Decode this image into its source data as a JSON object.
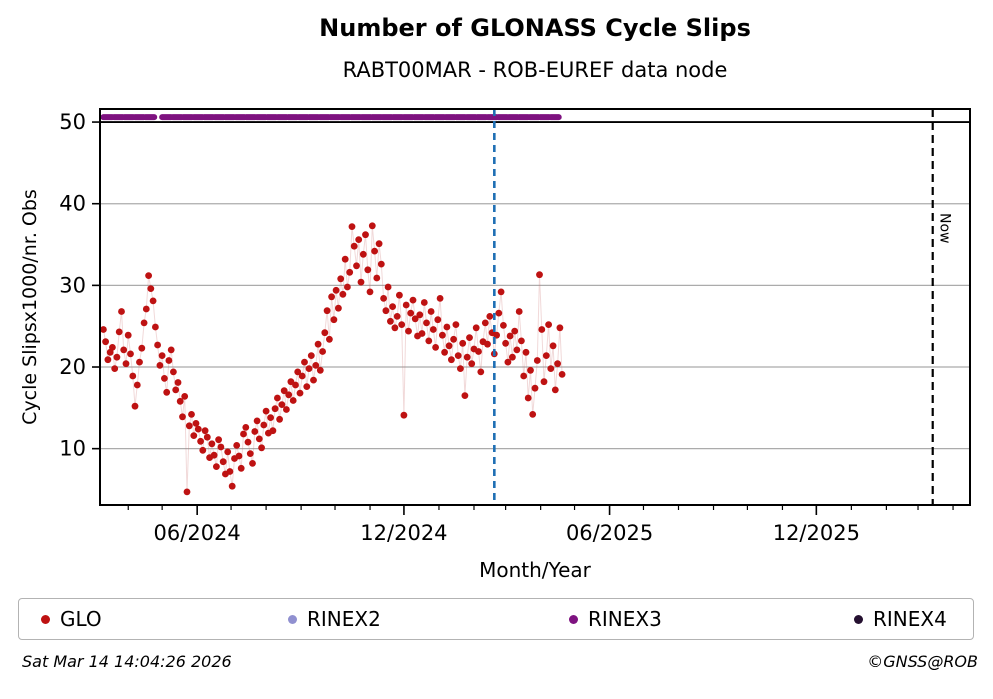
{
  "header": {
    "title": "Number of GLONASS Cycle Slips",
    "subtitle": "RABT00MAR - ROB-EUREF data node"
  },
  "footer": {
    "timestamp": "Sat Mar 14 14:04:26 2026",
    "credit": "©GNSS@ROB"
  },
  "chart_data": {
    "type": "scatter",
    "title": "Number of GLONASS Cycle Slips",
    "subtitle": "RABT00MAR - ROB-EUREF data node",
    "xlabel": "Month/Year",
    "ylabel": "Cycle Slipsx1000/nr. Obs",
    "x_start_date": "2024-03-10",
    "x_domain_days": [
      -3,
      767
    ],
    "y_domain": [
      3.1,
      51.6
    ],
    "y_ticks": [
      10,
      20,
      30,
      40,
      50
    ],
    "grid_color": "#ababab",
    "cap_line_value": 50,
    "x_major_ticks": [
      {
        "day": 83,
        "label": "06/2024"
      },
      {
        "day": 266,
        "label": "12/2024"
      },
      {
        "day": 448,
        "label": "06/2025"
      },
      {
        "day": 631,
        "label": "12/2025"
      }
    ],
    "x_minor_tick_days": [
      22,
      52,
      113,
      144,
      175,
      205,
      236,
      297,
      328,
      356,
      387,
      417,
      478,
      509,
      540,
      570,
      601,
      662,
      693,
      721,
      752
    ],
    "legend_items": [
      {
        "label": "GLO",
        "color": "#be1212"
      },
      {
        "label": "RINEX2",
        "color": "#9090d0"
      },
      {
        "label": "RINEX3",
        "color": "#7e1280"
      },
      {
        "label": "RINEX4",
        "color": "#251030"
      }
    ],
    "event_line": {
      "day": 346,
      "color": "#1f6fb4"
    },
    "now_line": {
      "day": 734,
      "label": "Now",
      "color": "#000000"
    },
    "rinex3_line": {
      "value": 50.6,
      "color": "#7e1280",
      "segments": [
        [
          0,
          45
        ],
        [
          52,
          403
        ]
      ]
    },
    "series": [
      {
        "name": "GLO",
        "color": "#be1212",
        "connector_color": "rgba(205,120,120,0.28)",
        "points": [
          [
            0,
            24.6
          ],
          [
            2,
            23.1
          ],
          [
            4,
            20.9
          ],
          [
            6,
            21.8
          ],
          [
            8,
            22.4
          ],
          [
            10,
            19.8
          ],
          [
            12,
            21.2
          ],
          [
            14,
            24.3
          ],
          [
            16,
            26.8
          ],
          [
            18,
            22.1
          ],
          [
            20,
            20.4
          ],
          [
            22,
            23.9
          ],
          [
            24,
            21.6
          ],
          [
            26,
            18.9
          ],
          [
            28,
            15.2
          ],
          [
            30,
            17.8
          ],
          [
            32,
            20.6
          ],
          [
            34,
            22.3
          ],
          [
            36,
            25.4
          ],
          [
            38,
            27.1
          ],
          [
            40,
            31.2
          ],
          [
            42,
            29.6
          ],
          [
            44,
            28.1
          ],
          [
            46,
            24.9
          ],
          [
            48,
            22.7
          ],
          [
            50,
            20.2
          ],
          [
            52,
            21.4
          ],
          [
            54,
            18.6
          ],
          [
            56,
            16.9
          ],
          [
            58,
            20.8
          ],
          [
            60,
            22.1
          ],
          [
            62,
            19.4
          ],
          [
            64,
            17.2
          ],
          [
            66,
            18.1
          ],
          [
            68,
            15.8
          ],
          [
            70,
            13.9
          ],
          [
            72,
            16.4
          ],
          [
            74,
            4.7
          ],
          [
            76,
            12.8
          ],
          [
            78,
            14.2
          ],
          [
            80,
            11.6
          ],
          [
            82,
            13.1
          ],
          [
            84,
            12.4
          ],
          [
            86,
            10.9
          ],
          [
            88,
            9.8
          ],
          [
            90,
            12.2
          ],
          [
            92,
            11.4
          ],
          [
            94,
            8.9
          ],
          [
            96,
            10.6
          ],
          [
            98,
            9.2
          ],
          [
            100,
            7.8
          ],
          [
            102,
            11.1
          ],
          [
            104,
            10.2
          ],
          [
            106,
            8.4
          ],
          [
            108,
            6.9
          ],
          [
            110,
            9.6
          ],
          [
            112,
            7.2
          ],
          [
            114,
            5.4
          ],
          [
            116,
            8.8
          ],
          [
            118,
            10.4
          ],
          [
            120,
            9.1
          ],
          [
            122,
            7.6
          ],
          [
            124,
            11.8
          ],
          [
            126,
            12.6
          ],
          [
            128,
            10.8
          ],
          [
            130,
            9.4
          ],
          [
            132,
            8.2
          ],
          [
            134,
            12.1
          ],
          [
            136,
            13.4
          ],
          [
            138,
            11.2
          ],
          [
            140,
            10.1
          ],
          [
            142,
            12.9
          ],
          [
            144,
            14.6
          ],
          [
            146,
            11.9
          ],
          [
            148,
            13.8
          ],
          [
            150,
            12.2
          ],
          [
            152,
            14.9
          ],
          [
            154,
            16.2
          ],
          [
            156,
            13.6
          ],
          [
            158,
            15.4
          ],
          [
            160,
            17.1
          ],
          [
            162,
            14.8
          ],
          [
            164,
            16.6
          ],
          [
            166,
            18.2
          ],
          [
            168,
            15.9
          ],
          [
            170,
            17.8
          ],
          [
            172,
            19.4
          ],
          [
            174,
            16.8
          ],
          [
            176,
            18.9
          ],
          [
            178,
            20.6
          ],
          [
            180,
            17.6
          ],
          [
            182,
            19.8
          ],
          [
            184,
            21.4
          ],
          [
            186,
            18.4
          ],
          [
            188,
            20.2
          ],
          [
            190,
            22.8
          ],
          [
            192,
            19.6
          ],
          [
            194,
            21.9
          ],
          [
            196,
            24.2
          ],
          [
            198,
            26.9
          ],
          [
            200,
            23.4
          ],
          [
            202,
            28.6
          ],
          [
            204,
            25.8
          ],
          [
            206,
            29.4
          ],
          [
            208,
            27.2
          ],
          [
            210,
            30.8
          ],
          [
            212,
            28.9
          ],
          [
            214,
            33.2
          ],
          [
            216,
            29.8
          ],
          [
            218,
            31.6
          ],
          [
            220,
            37.2
          ],
          [
            222,
            34.8
          ],
          [
            224,
            32.4
          ],
          [
            226,
            35.6
          ],
          [
            228,
            30.4
          ],
          [
            230,
            33.8
          ],
          [
            232,
            36.2
          ],
          [
            234,
            31.9
          ],
          [
            236,
            29.2
          ],
          [
            238,
            37.3
          ],
          [
            240,
            34.2
          ],
          [
            242,
            30.9
          ],
          [
            244,
            35.1
          ],
          [
            246,
            32.6
          ],
          [
            248,
            28.4
          ],
          [
            250,
            26.9
          ],
          [
            252,
            29.8
          ],
          [
            254,
            25.6
          ],
          [
            256,
            27.4
          ],
          [
            258,
            24.8
          ],
          [
            260,
            26.2
          ],
          [
            262,
            28.8
          ],
          [
            264,
            25.2
          ],
          [
            266,
            14.1
          ],
          [
            268,
            27.6
          ],
          [
            270,
            24.4
          ],
          [
            272,
            26.6
          ],
          [
            274,
            28.2
          ],
          [
            276,
            25.9
          ],
          [
            278,
            23.8
          ],
          [
            280,
            26.4
          ],
          [
            282,
            24.1
          ],
          [
            284,
            27.9
          ],
          [
            286,
            25.4
          ],
          [
            288,
            23.2
          ],
          [
            290,
            26.8
          ],
          [
            292,
            24.6
          ],
          [
            294,
            22.4
          ],
          [
            296,
            25.8
          ],
          [
            298,
            28.4
          ],
          [
            300,
            23.9
          ],
          [
            302,
            21.8
          ],
          [
            304,
            24.9
          ],
          [
            306,
            22.6
          ],
          [
            308,
            20.9
          ],
          [
            310,
            23.4
          ],
          [
            312,
            25.2
          ],
          [
            314,
            21.4
          ],
          [
            316,
            19.8
          ],
          [
            318,
            22.9
          ],
          [
            320,
            16.5
          ],
          [
            322,
            21.2
          ],
          [
            324,
            23.6
          ],
          [
            326,
            20.4
          ],
          [
            328,
            22.2
          ],
          [
            330,
            24.8
          ],
          [
            332,
            21.9
          ],
          [
            334,
            19.4
          ],
          [
            336,
            23.1
          ],
          [
            338,
            25.4
          ],
          [
            340,
            22.8
          ],
          [
            342,
            26.2
          ],
          [
            344,
            24.2
          ],
          [
            346,
            21.6
          ],
          [
            348,
            23.9
          ],
          [
            350,
            26.6
          ],
          [
            352,
            29.2
          ],
          [
            354,
            25.1
          ],
          [
            356,
            22.9
          ],
          [
            358,
            20.6
          ],
          [
            360,
            23.8
          ],
          [
            362,
            21.2
          ],
          [
            364,
            24.4
          ],
          [
            366,
            22.1
          ],
          [
            368,
            26.8
          ],
          [
            370,
            23.2
          ],
          [
            372,
            18.9
          ],
          [
            374,
            21.8
          ],
          [
            376,
            16.2
          ],
          [
            378,
            19.6
          ],
          [
            380,
            14.2
          ],
          [
            382,
            17.4
          ],
          [
            384,
            20.8
          ],
          [
            386,
            31.3
          ],
          [
            388,
            24.6
          ],
          [
            390,
            18.2
          ],
          [
            392,
            21.4
          ],
          [
            394,
            25.2
          ],
          [
            396,
            19.8
          ],
          [
            398,
            22.6
          ],
          [
            400,
            17.2
          ],
          [
            402,
            20.4
          ],
          [
            404,
            24.8
          ],
          [
            406,
            19.1
          ]
        ]
      }
    ]
  }
}
